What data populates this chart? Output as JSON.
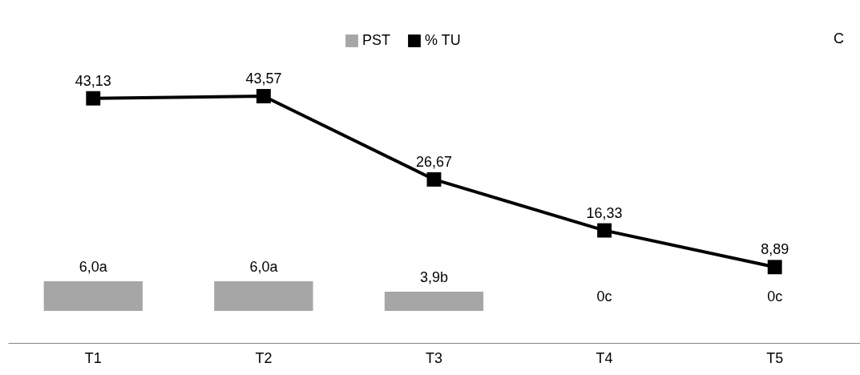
{
  "chart_data": {
    "type": "bar",
    "categories": [
      "T1",
      "T2",
      "T3",
      "T4",
      "T5"
    ],
    "series": [
      {
        "name": "PST",
        "color": "#a6a6a6",
        "values": [
          6.0,
          6.0,
          3.9,
          0,
          0
        ],
        "value_labels": [
          "6,0a",
          "6,0a",
          "3,9b",
          "0c",
          "0c"
        ]
      },
      {
        "name": "% TU",
        "type": "line",
        "color": "#000000",
        "values": [
          43.13,
          43.57,
          26.67,
          16.33,
          8.89
        ],
        "value_labels": [
          "43,13",
          "43,57",
          "26,67",
          "16,33",
          "8,89"
        ]
      }
    ],
    "tick_labels": "x",
    "legend": "top",
    "marker": "square",
    "line_style": "solid",
    "annotations": [
      "C"
    ]
  }
}
